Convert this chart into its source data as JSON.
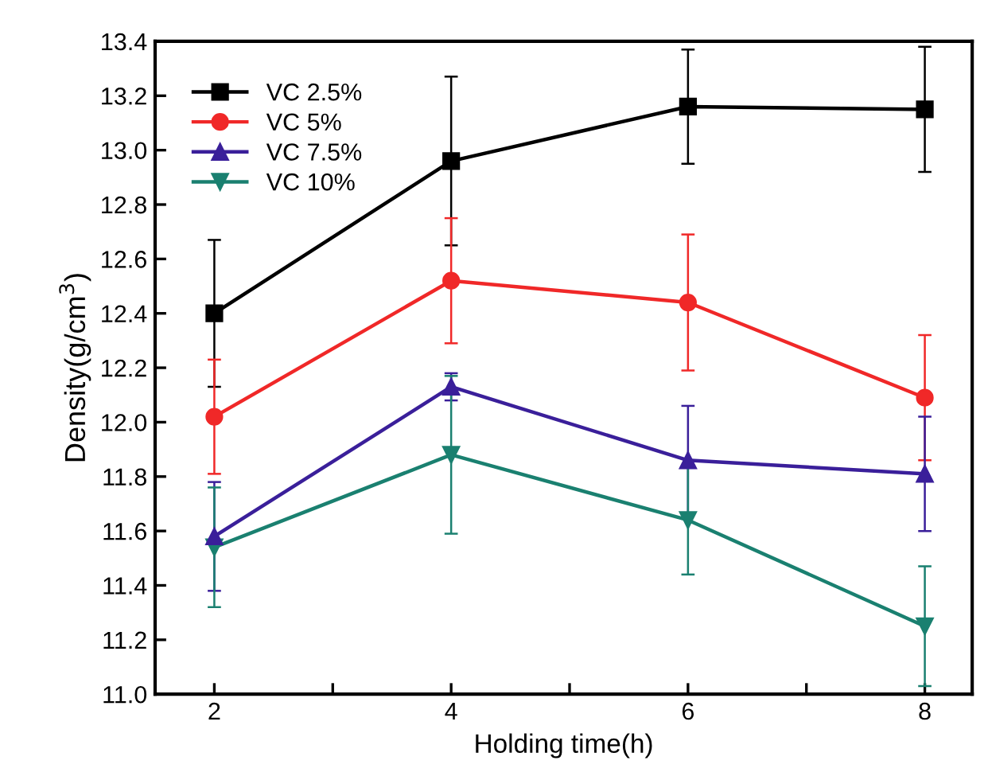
{
  "chart_data": {
    "type": "line",
    "xlabel": "Holding time(h)",
    "ylabel": "Density(g/cm$^{3}$)",
    "x": [
      2,
      4,
      6,
      8
    ],
    "series": [
      {
        "name": "VC 2.5%",
        "color": "#000000",
        "marker": "square",
        "values": [
          12.4,
          12.96,
          13.16,
          13.15
        ],
        "errors": [
          0.27,
          0.31,
          0.21,
          0.23
        ]
      },
      {
        "name": "VC 5%",
        "color": "#f02828",
        "marker": "circle",
        "values": [
          12.02,
          12.52,
          12.44,
          12.09
        ],
        "errors": [
          0.21,
          0.23,
          0.25,
          0.23
        ]
      },
      {
        "name": "VC 7.5%",
        "color": "#3a1f9a",
        "marker": "triangle",
        "values": [
          11.58,
          12.13,
          11.86,
          11.81
        ],
        "errors": [
          0.2,
          0.05,
          0.2,
          0.21
        ]
      },
      {
        "name": "VC 10%",
        "color": "#1a8070",
        "marker": "triangle_down",
        "values": [
          11.54,
          11.88,
          11.64,
          11.25
        ],
        "errors": [
          0.22,
          0.29,
          0.2,
          0.22
        ]
      }
    ],
    "xlim": [
      1.5,
      8.4
    ],
    "xticks": [
      2,
      {
        "value": 3,
        "label": null
      },
      4,
      {
        "value": 5,
        "label": null
      },
      6,
      {
        "value": 7,
        "label": null
      },
      8
    ],
    "ylim": [
      11.0,
      13.4
    ],
    "yticks": [
      {
        "value": 11.0,
        "label": "11.0"
      },
      11.2,
      11.4,
      11.6,
      11.8,
      {
        "value": 12.0,
        "label": "12.0"
      },
      12.2,
      12.4,
      12.6,
      12.8,
      {
        "value": 13.0,
        "label": "13.0"
      },
      13.2,
      13.4
    ],
    "line_style": "solid",
    "grid": false,
    "legend": "top left"
  }
}
